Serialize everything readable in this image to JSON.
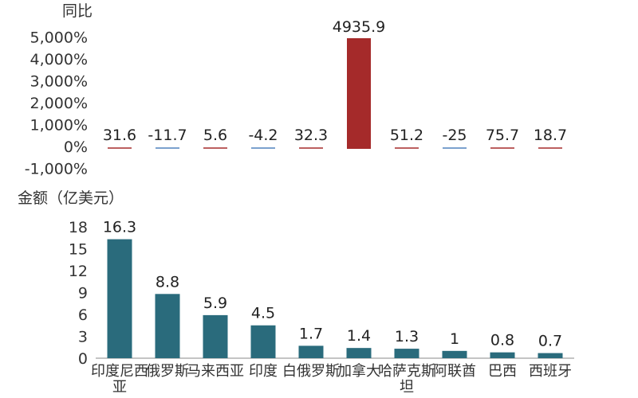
{
  "chart_data": [
    {
      "type": "bar",
      "title": "同比",
      "categories": [
        "印度尼西亚",
        "俄罗斯",
        "马来西亚",
        "印度",
        "白俄罗斯",
        "加拿大",
        "哈萨克斯坦",
        "阿联酋",
        "巴西",
        "西班牙"
      ],
      "values": [
        31.6,
        -11.7,
        5.6,
        -4.2,
        32.3,
        4935.9,
        51.2,
        -25,
        75.7,
        18.7
      ],
      "value_labels": [
        "31.6",
        "-11.7",
        "5.6",
        "-4.2",
        "32.3",
        "4935.9",
        "51.2",
        "-25",
        "75.7",
        "18.7"
      ],
      "ylim": [
        -1000,
        5000
      ],
      "yticks": [
        5000,
        4000,
        3000,
        2000,
        1000,
        0,
        -1000
      ],
      "ytick_labels": [
        "5,000%",
        "4,000%",
        "3,000%",
        "2,000%",
        "1,000%",
        "0%",
        "-1,000%"
      ],
      "colors": {
        "positive": "#a52a2a",
        "negative": "#4f81bd"
      }
    },
    {
      "type": "bar",
      "title": "金额（亿美元）",
      "categories": [
        "印度尼西亚",
        "俄罗斯",
        "马来西亚",
        "印度",
        "白俄罗斯",
        "加拿大",
        "哈萨克斯坦",
        "阿联酋",
        "巴西",
        "西班牙"
      ],
      "values": [
        16.3,
        8.8,
        5.9,
        4.5,
        1.7,
        1.4,
        1.3,
        1,
        0.8,
        0.7
      ],
      "value_labels": [
        "16.3",
        "8.8",
        "5.9",
        "4.5",
        "1.7",
        "1.4",
        "1.3",
        "1",
        "0.8",
        "0.7"
      ],
      "ylim": [
        0,
        18
      ],
      "yticks": [
        18,
        15,
        12,
        9,
        6,
        3,
        0
      ],
      "ytick_labels": [
        "18",
        "15",
        "12",
        "9",
        "6",
        "3",
        "0"
      ],
      "colors": {
        "bar": "#2a6b7c"
      }
    }
  ]
}
